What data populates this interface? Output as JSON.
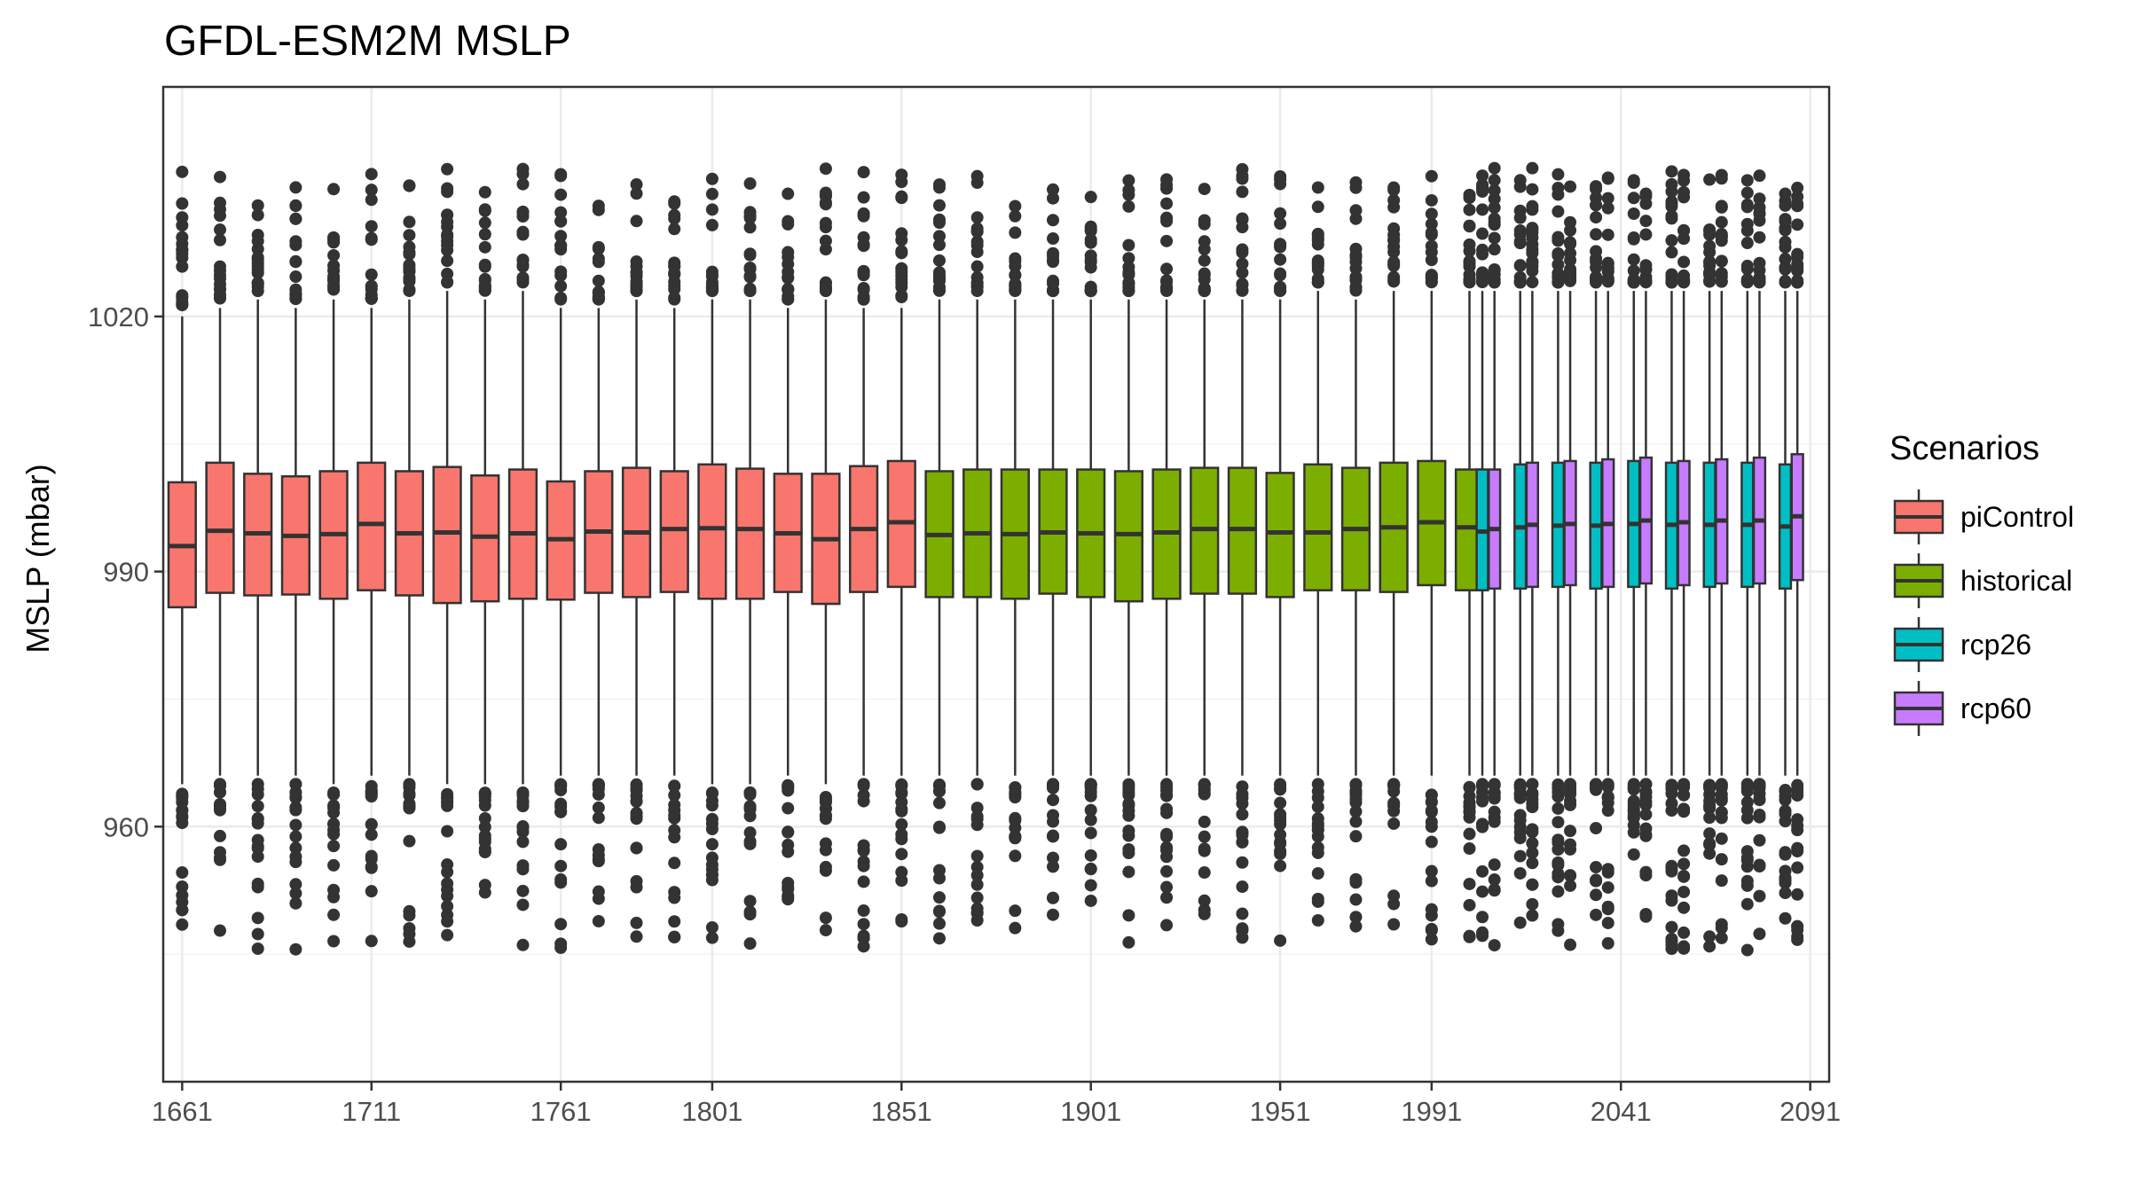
{
  "chart_data": {
    "type": "boxplot",
    "title": "GFDL-ESM2M MSLP",
    "xlabel": "",
    "ylabel": "MSLP (mbar)",
    "xlim": [
      1656,
      2096
    ],
    "ylim": [
      930,
      1047
    ],
    "x_ticks": [
      1661,
      1711,
      1761,
      1801,
      1851,
      1901,
      1951,
      1991,
      2041,
      2091
    ],
    "y_ticks": [
      960,
      990,
      1020
    ],
    "grid": true,
    "legend": {
      "title": "Scenarios",
      "position": "right",
      "entries": [
        {
          "name": "piControl",
          "color": "#F8766D"
        },
        {
          "name": "historical",
          "color": "#7CAE00"
        },
        {
          "name": "rcp26",
          "color": "#00BFC4"
        },
        {
          "name": "rcp60",
          "color": "#C77CFF"
        }
      ]
    },
    "series": [
      {
        "name": "piControl",
        "color": "#F8766D",
        "boxes": [
          {
            "x": 1661,
            "whisker_low": 965,
            "q1": 985.8,
            "median": 993.0,
            "q3": 1000.5,
            "whisker_high": 1020
          },
          {
            "x": 1671,
            "whisker_low": 966,
            "q1": 987.5,
            "median": 994.8,
            "q3": 1002.8,
            "whisker_high": 1021
          },
          {
            "x": 1681,
            "whisker_low": 966,
            "q1": 987.2,
            "median": 994.5,
            "q3": 1001.5,
            "whisker_high": 1022
          },
          {
            "x": 1691,
            "whisker_low": 966,
            "q1": 987.3,
            "median": 994.2,
            "q3": 1001.2,
            "whisker_high": 1021
          },
          {
            "x": 1701,
            "whisker_low": 965,
            "q1": 986.8,
            "median": 994.4,
            "q3": 1001.8,
            "whisker_high": 1022
          },
          {
            "x": 1711,
            "whisker_low": 966,
            "q1": 987.8,
            "median": 995.6,
            "q3": 1002.8,
            "whisker_high": 1021
          },
          {
            "x": 1721,
            "whisker_low": 966,
            "q1": 987.2,
            "median": 994.5,
            "q3": 1001.8,
            "whisker_high": 1022
          },
          {
            "x": 1731,
            "whisker_low": 965,
            "q1": 986.3,
            "median": 994.6,
            "q3": 1002.3,
            "whisker_high": 1023
          },
          {
            "x": 1741,
            "whisker_low": 965,
            "q1": 986.5,
            "median": 994.1,
            "q3": 1001.3,
            "whisker_high": 1022
          },
          {
            "x": 1751,
            "whisker_low": 965,
            "q1": 986.8,
            "median": 994.5,
            "q3": 1002.0,
            "whisker_high": 1023
          },
          {
            "x": 1761,
            "whisker_low": 966,
            "q1": 986.7,
            "median": 993.8,
            "q3": 1000.6,
            "whisker_high": 1021
          },
          {
            "x": 1771,
            "whisker_low": 966,
            "q1": 987.5,
            "median": 994.7,
            "q3": 1001.8,
            "whisker_high": 1021
          },
          {
            "x": 1781,
            "whisker_low": 966,
            "q1": 987.0,
            "median": 994.6,
            "q3": 1002.2,
            "whisker_high": 1022
          },
          {
            "x": 1791,
            "whisker_low": 966,
            "q1": 987.6,
            "median": 995.0,
            "q3": 1001.8,
            "whisker_high": 1021
          },
          {
            "x": 1801,
            "whisker_low": 965,
            "q1": 986.8,
            "median": 995.1,
            "q3": 1002.6,
            "whisker_high": 1022
          },
          {
            "x": 1811,
            "whisker_low": 965,
            "q1": 986.8,
            "median": 995.0,
            "q3": 1002.1,
            "whisker_high": 1022
          },
          {
            "x": 1821,
            "whisker_low": 966,
            "q1": 987.6,
            "median": 994.5,
            "q3": 1001.5,
            "whisker_high": 1021
          },
          {
            "x": 1831,
            "whisker_low": 965,
            "q1": 986.2,
            "median": 993.8,
            "q3": 1001.5,
            "whisker_high": 1022
          },
          {
            "x": 1841,
            "whisker_low": 966,
            "q1": 987.6,
            "median": 995.0,
            "q3": 1002.4,
            "whisker_high": 1021
          },
          {
            "x": 1851,
            "whisker_low": 966,
            "q1": 988.2,
            "median": 995.8,
            "q3": 1003.0,
            "whisker_high": 1021
          }
        ]
      },
      {
        "name": "historical",
        "color": "#7CAE00",
        "boxes": [
          {
            "x": 1861,
            "whisker_low": 966,
            "q1": 987.0,
            "median": 994.3,
            "q3": 1001.8,
            "whisker_high": 1022
          },
          {
            "x": 1871,
            "whisker_low": 966,
            "q1": 987.0,
            "median": 994.5,
            "q3": 1002.0,
            "whisker_high": 1022
          },
          {
            "x": 1881,
            "whisker_low": 966,
            "q1": 986.8,
            "median": 994.4,
            "q3": 1002.0,
            "whisker_high": 1022
          },
          {
            "x": 1891,
            "whisker_low": 966,
            "q1": 987.4,
            "median": 994.6,
            "q3": 1002.0,
            "whisker_high": 1022
          },
          {
            "x": 1901,
            "whisker_low": 966,
            "q1": 987.0,
            "median": 994.5,
            "q3": 1002.0,
            "whisker_high": 1022
          },
          {
            "x": 1911,
            "whisker_low": 966,
            "q1": 986.5,
            "median": 994.4,
            "q3": 1001.8,
            "whisker_high": 1022
          },
          {
            "x": 1921,
            "whisker_low": 966,
            "q1": 986.8,
            "median": 994.6,
            "q3": 1002.0,
            "whisker_high": 1022
          },
          {
            "x": 1931,
            "whisker_low": 966,
            "q1": 987.4,
            "median": 995.0,
            "q3": 1002.2,
            "whisker_high": 1022
          },
          {
            "x": 1941,
            "whisker_low": 966,
            "q1": 987.4,
            "median": 995.0,
            "q3": 1002.2,
            "whisker_high": 1022
          },
          {
            "x": 1951,
            "whisker_low": 966,
            "q1": 987.0,
            "median": 994.6,
            "q3": 1001.6,
            "whisker_high": 1022
          },
          {
            "x": 1961,
            "whisker_low": 966,
            "q1": 987.8,
            "median": 994.6,
            "q3": 1002.6,
            "whisker_high": 1023
          },
          {
            "x": 1971,
            "whisker_low": 966,
            "q1": 987.8,
            "median": 995.0,
            "q3": 1002.2,
            "whisker_high": 1022
          },
          {
            "x": 1981,
            "whisker_low": 966,
            "q1": 987.6,
            "median": 995.2,
            "q3": 1002.8,
            "whisker_high": 1023
          },
          {
            "x": 1991,
            "whisker_low": 966,
            "q1": 988.4,
            "median": 995.8,
            "q3": 1003.0,
            "whisker_high": 1023
          },
          {
            "x": 2001,
            "whisker_low": 966,
            "q1": 987.8,
            "median": 995.2,
            "q3": 1002.0,
            "whisker_high": 1023
          }
        ]
      },
      {
        "name": "rcp26",
        "color": "#00BFC4",
        "boxes": [
          {
            "x": 2006,
            "whisker_low": 966,
            "q1": 987.8,
            "median": 994.7,
            "q3": 1002.0,
            "whisker_high": 1023
          },
          {
            "x": 2016,
            "whisker_low": 966,
            "q1": 988.0,
            "median": 995.2,
            "q3": 1002.6,
            "whisker_high": 1023
          },
          {
            "x": 2026,
            "whisker_low": 966,
            "q1": 988.2,
            "median": 995.4,
            "q3": 1002.8,
            "whisker_high": 1023
          },
          {
            "x": 2036,
            "whisker_low": 966,
            "q1": 988.0,
            "median": 995.4,
            "q3": 1002.8,
            "whisker_high": 1023
          },
          {
            "x": 2046,
            "whisker_low": 966,
            "q1": 988.2,
            "median": 995.6,
            "q3": 1003.0,
            "whisker_high": 1023
          },
          {
            "x": 2056,
            "whisker_low": 966,
            "q1": 988.0,
            "median": 995.5,
            "q3": 1002.8,
            "whisker_high": 1023
          },
          {
            "x": 2066,
            "whisker_low": 966,
            "q1": 988.2,
            "median": 995.5,
            "q3": 1002.8,
            "whisker_high": 1023
          },
          {
            "x": 2076,
            "whisker_low": 966,
            "q1": 988.2,
            "median": 995.5,
            "q3": 1002.8,
            "whisker_high": 1023
          },
          {
            "x": 2086,
            "whisker_low": 966,
            "q1": 988.0,
            "median": 995.3,
            "q3": 1002.6,
            "whisker_high": 1023
          }
        ]
      },
      {
        "name": "rcp60",
        "color": "#C77CFF",
        "boxes": [
          {
            "x": 2006,
            "whisker_low": 966,
            "q1": 988.0,
            "median": 995.0,
            "q3": 1002.0,
            "whisker_high": 1023
          },
          {
            "x": 2016,
            "whisker_low": 966,
            "q1": 988.2,
            "median": 995.5,
            "q3": 1002.8,
            "whisker_high": 1023
          },
          {
            "x": 2026,
            "whisker_low": 966,
            "q1": 988.4,
            "median": 995.6,
            "q3": 1003.0,
            "whisker_high": 1023
          },
          {
            "x": 2036,
            "whisker_low": 966,
            "q1": 988.2,
            "median": 995.6,
            "q3": 1003.2,
            "whisker_high": 1023
          },
          {
            "x": 2046,
            "whisker_low": 966,
            "q1": 988.6,
            "median": 996.0,
            "q3": 1003.4,
            "whisker_high": 1023
          },
          {
            "x": 2056,
            "whisker_low": 966,
            "q1": 988.4,
            "median": 995.8,
            "q3": 1003.0,
            "whisker_high": 1023
          },
          {
            "x": 2066,
            "whisker_low": 966,
            "q1": 988.6,
            "median": 996.0,
            "q3": 1003.2,
            "whisker_high": 1023
          },
          {
            "x": 2076,
            "whisker_low": 966,
            "q1": 988.6,
            "median": 996.0,
            "q3": 1003.4,
            "whisker_high": 1023
          },
          {
            "x": 2086,
            "whisker_low": 966,
            "q1": 989.0,
            "median": 996.5,
            "q3": 1003.8,
            "whisker_high": 1023
          }
        ]
      }
    ],
    "outlier_ranges": {
      "upper": [
        1021,
        1040
      ],
      "lower": [
        942,
        966
      ]
    }
  }
}
